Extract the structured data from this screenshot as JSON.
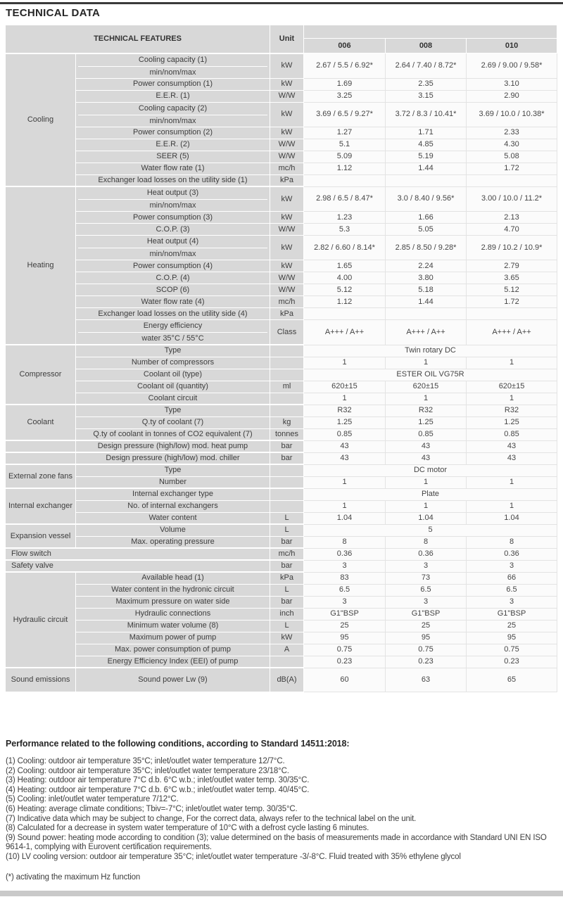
{
  "page": {
    "title": "TECHNICAL DATA"
  },
  "colors": {
    "label_cell_bg": "#d8d8d8",
    "value_cell_bg": "#fbfbfb",
    "top_rule": "#3a3a3a",
    "bottom_bar": "#c9c9c9",
    "text": "#3d3d3d"
  },
  "table": {
    "header": {
      "features_label": "TECHNICAL FEATURES",
      "unit_label": "Unit",
      "models": [
        "006",
        "008",
        "010"
      ]
    },
    "sections": [
      {
        "group": "Cooling",
        "rows": [
          {
            "feature": "Cooling capacity (1)",
            "feature2": "min/nom/max",
            "unit": "kW",
            "values": [
              "2.67 / 5.5 / 6.92*",
              "2.64 / 7.40 / 8.72*",
              "2.69 / 9.00 / 9.58*"
            ]
          },
          {
            "feature": "Power consumption (1)",
            "unit": "kW",
            "values": [
              "1.69",
              "2.35",
              "3.10"
            ]
          },
          {
            "feature": "E.E.R. (1)",
            "unit": "W/W",
            "values": [
              "3.25",
              "3.15",
              "2.90"
            ]
          },
          {
            "feature": "Cooling capacity (2)",
            "feature2": "min/nom/max",
            "unit": "kW",
            "values": [
              "3.69 / 6.5 / 9.27*",
              "3.72 / 8.3 / 10.41*",
              "3.69 / 10.0 / 10.38*"
            ]
          },
          {
            "feature": "Power consumption (2)",
            "unit": "kW",
            "values": [
              "1.27",
              "1.71",
              "2.33"
            ]
          },
          {
            "feature": "E.E.R. (2)",
            "unit": "W/W",
            "values": [
              "5.1",
              "4.85",
              "4.30"
            ]
          },
          {
            "feature": "SEER (5)",
            "unit": "W/W",
            "values": [
              "5.09",
              "5.19",
              "5.08"
            ]
          },
          {
            "feature": "Water flow rate (1)",
            "unit": "mc/h",
            "values": [
              "1.12",
              "1.44",
              "1.72"
            ]
          },
          {
            "feature": "Exchanger load losses on the utility side (1)",
            "unit": "kPa",
            "values": [
              "",
              "",
              ""
            ]
          }
        ]
      },
      {
        "group": "Heating",
        "rows": [
          {
            "feature": "Heat output (3)",
            "feature2": "min/nom/max",
            "unit": "kW",
            "values": [
              "2.98 / 6.5 / 8.47*",
              "3.0 / 8.40 / 9.56*",
              "3.00 / 10.0 / 11.2*"
            ]
          },
          {
            "feature": "Power consumption (3)",
            "unit": "kW",
            "values": [
              "1.23",
              "1.66",
              "2.13"
            ]
          },
          {
            "feature": "C.O.P. (3)",
            "unit": "W/W",
            "values": [
              "5.3",
              "5.05",
              "4.70"
            ]
          },
          {
            "feature": "Heat output (4)",
            "feature2": "min/nom/max",
            "unit": "kW",
            "values": [
              "2.82 / 6.60 / 8.14*",
              "2.85 / 8.50 / 9.28*",
              "2.89 / 10.2 / 10.9*"
            ]
          },
          {
            "feature": "Power consumption (4)",
            "unit": "kW",
            "values": [
              "1.65",
              "2.24",
              "2.79"
            ]
          },
          {
            "feature": "C.O.P. (4)",
            "unit": "W/W",
            "values": [
              "4.00",
              "3.80",
              "3.65"
            ]
          },
          {
            "feature": "SCOP (6)",
            "unit": "W/W",
            "values": [
              "5.12",
              "5.18",
              "5.12"
            ]
          },
          {
            "feature": "Water flow rate (4)",
            "unit": "mc/h",
            "values": [
              "1.12",
              "1.44",
              "1.72"
            ]
          },
          {
            "feature": "Exchanger load losses on the utility side (4)",
            "unit": "kPa",
            "values": [
              "",
              "",
              ""
            ]
          },
          {
            "feature": "Energy efficiency",
            "feature2": "water 35°C / 55°C",
            "unit": "Class",
            "values": [
              "A+++ / A++",
              "A+++ / A++",
              "A+++ / A++"
            ]
          }
        ]
      },
      {
        "group": "Compressor",
        "rows": [
          {
            "feature": "Type",
            "unit": "",
            "span": "Twin rotary DC"
          },
          {
            "feature": "Number of compressors",
            "unit": "",
            "values": [
              "1",
              "1",
              "1"
            ]
          },
          {
            "feature": "Coolant oil (type)",
            "unit": "",
            "span": "ESTER OIL VG75R"
          },
          {
            "feature": "Coolant oil (quantity)",
            "unit": "ml",
            "values": [
              "620±15",
              "620±15",
              "620±15"
            ]
          },
          {
            "feature": "Coolant circuit",
            "unit": "",
            "values": [
              "1",
              "1",
              "1"
            ]
          }
        ]
      },
      {
        "group": "Coolant",
        "rows": [
          {
            "feature": "Type",
            "unit": "",
            "values": [
              "R32",
              "R32",
              "R32"
            ]
          },
          {
            "feature": "Q.ty of coolant (7)",
            "unit": "kg",
            "values": [
              "1.25",
              "1.25",
              "1.25"
            ]
          },
          {
            "feature": "Q.ty of coolant in tonnes of CO2 equivalent (7)",
            "unit": "tonnes",
            "values": [
              "0.85",
              "0.85",
              "0.85"
            ]
          }
        ]
      },
      {
        "group": "",
        "rows": [
          {
            "feature": "Design pressure (high/low) mod. heat pump",
            "unit": "bar",
            "values": [
              "43",
              "43",
              "43"
            ]
          }
        ]
      },
      {
        "group": "",
        "rows": [
          {
            "feature": "Design pressure (high/low) mod. chiller",
            "unit": "bar",
            "values": [
              "43",
              "43",
              "43"
            ]
          }
        ]
      },
      {
        "group": "External zone fans",
        "rows": [
          {
            "feature": "Type",
            "unit": "",
            "span": "DC motor"
          },
          {
            "feature": "Number",
            "unit": "",
            "values": [
              "1",
              "1",
              "1"
            ]
          }
        ]
      },
      {
        "group": "Internal exchanger",
        "rows": [
          {
            "feature": "Internal exchanger type",
            "unit": "",
            "span": "Plate"
          },
          {
            "feature": "No. of internal exchangers",
            "unit": "",
            "values": [
              "1",
              "1",
              "1"
            ]
          },
          {
            "feature": "Water content",
            "unit": "L",
            "values": [
              "1.04",
              "1.04",
              "1.04"
            ]
          }
        ]
      },
      {
        "group": "Expansion vessel",
        "rows": [
          {
            "feature": "Volume",
            "unit": "L",
            "span": "5"
          },
          {
            "feature": "Max. operating pressure",
            "unit": "bar",
            "values": [
              "8",
              "8",
              "8"
            ]
          }
        ]
      },
      {
        "group": "",
        "rows": [
          {
            "feature": "Flow switch",
            "wide": true,
            "unit": "mc/h",
            "values": [
              "0.36",
              "0.36",
              "0.36"
            ]
          }
        ]
      },
      {
        "group": "",
        "rows": [
          {
            "feature": "Safety valve",
            "wide": true,
            "unit": "bar",
            "values": [
              "3",
              "3",
              "3"
            ]
          }
        ]
      },
      {
        "group": "Hydraulic circuit",
        "rows": [
          {
            "feature": "Available head (1)",
            "unit": "kPa",
            "values": [
              "83",
              "73",
              "66"
            ]
          },
          {
            "feature": "Water content in the hydronic circuit",
            "unit": "L",
            "values": [
              "6.5",
              "6.5",
              "6.5"
            ]
          },
          {
            "feature": "Maximum pressure on water side",
            "unit": "bar",
            "values": [
              "3",
              "3",
              "3"
            ]
          },
          {
            "feature": "Hydraulic connections",
            "unit": "inch",
            "values": [
              "G1\"BSP",
              "G1\"BSP",
              "G1\"BSP"
            ]
          },
          {
            "feature": "Minimum water volume (8)",
            "unit": "L",
            "values": [
              "25",
              "25",
              "25"
            ]
          },
          {
            "feature": "Maximum power of pump",
            "unit": "kW",
            "values": [
              "95",
              "95",
              "95"
            ]
          },
          {
            "feature": "Max. power consumption of pump",
            "unit": "A",
            "values": [
              "0.75",
              "0.75",
              "0.75"
            ]
          },
          {
            "feature": "Energy Efficiency Index (EEI) of pump",
            "unit": "",
            "values": [
              "0.23",
              "0.23",
              "0.23"
            ]
          }
        ]
      },
      {
        "group": "Sound emissions",
        "rows": [
          {
            "feature": "Sound power Lw (9)",
            "unit": "dB(A)",
            "values": [
              "60",
              "63",
              "65"
            ],
            "tall": true
          }
        ]
      }
    ]
  },
  "footer": {
    "conditions_heading": "Performance related to the following conditions, according to Standard 14511:2018:",
    "notes": [
      "(1) Cooling: outdoor air temperature 35°C; inlet/outlet water temperature 12/7°C.",
      "(2) Cooling: outdoor air temperature 35°C; inlet/outlet water temperature 23/18°C.",
      "(3) Heating: outdoor air temperature 7°C d.b. 6°C w.b.; inlet/outlet water temp. 30/35°C.",
      "(4) Heating: outdoor air temperature 7°C d.b. 6°C w.b.; inlet/outlet water temp. 40/45°C.",
      "(5) Cooling: inlet/outlet water temperature 7/12°C.",
      "(6) Heating: average climate conditions; Tbiv=-7°C; inlet/outlet water temp. 30/35°C.",
      "(7) Indicative data which may be subject to change, For the correct data, always refer to the technical label on the unit.",
      "(8) Calculated for a decrease in system water temperature of 10°C with a defrost cycle lasting 6 minutes.",
      "(9) Sound power: heating mode according to condition (3); value determined on the basis of measurements made in accordance with Standard UNI EN ISO 9614-1, complying with Eurovent certification requirements.",
      "(10) LV cooling version: outdoor air temperature 35°C; inlet/outlet water temperature -3/-8°C. Fluid treated with 35% ethylene glycol"
    ],
    "asterisk_note": "(*) activating the maximum Hz function"
  }
}
